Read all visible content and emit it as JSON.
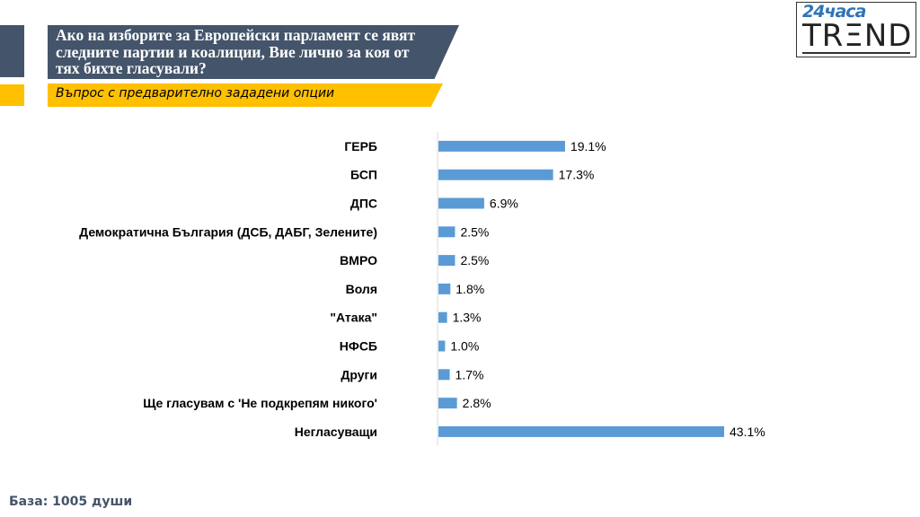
{
  "header": {
    "title": "Ако на изборите за Европейски парламент се явят следните партии и коалиции, Вие лично за коя от тях бихте гласували?",
    "subtitle": "Въпрос с предварително зададени опции"
  },
  "logo": {
    "top_text": "24часа",
    "main_text": "TRΞND"
  },
  "footer": {
    "base_text": "База: 1005 души"
  },
  "colors": {
    "bar": "#5b9bd5",
    "title_bg": "#44546a",
    "subtitle_bg": "#ffc000"
  },
  "chart_data": {
    "type": "bar",
    "orientation": "horizontal",
    "categories": [
      "ГЕРБ",
      "БСП",
      "ДПС",
      "Демократична България (ДСБ, ДАБГ, Зелените)",
      "ВМРО",
      "Воля",
      "\"Атака\"",
      "НФСБ",
      "Други",
      "Ще гласувам с 'Не подкрепям никого'",
      "Негласуващи"
    ],
    "values": [
      19.1,
      17.3,
      6.9,
      2.5,
      2.5,
      1.8,
      1.3,
      1.0,
      1.7,
      2.8,
      43.1
    ],
    "value_labels": [
      "19.1%",
      "17.3%",
      "6.9%",
      "2.5%",
      "2.5%",
      "1.8%",
      "1.3%",
      "1.0%",
      "1.7%",
      "2.8%",
      "43.1%"
    ],
    "grid": false,
    "legend": "none"
  }
}
